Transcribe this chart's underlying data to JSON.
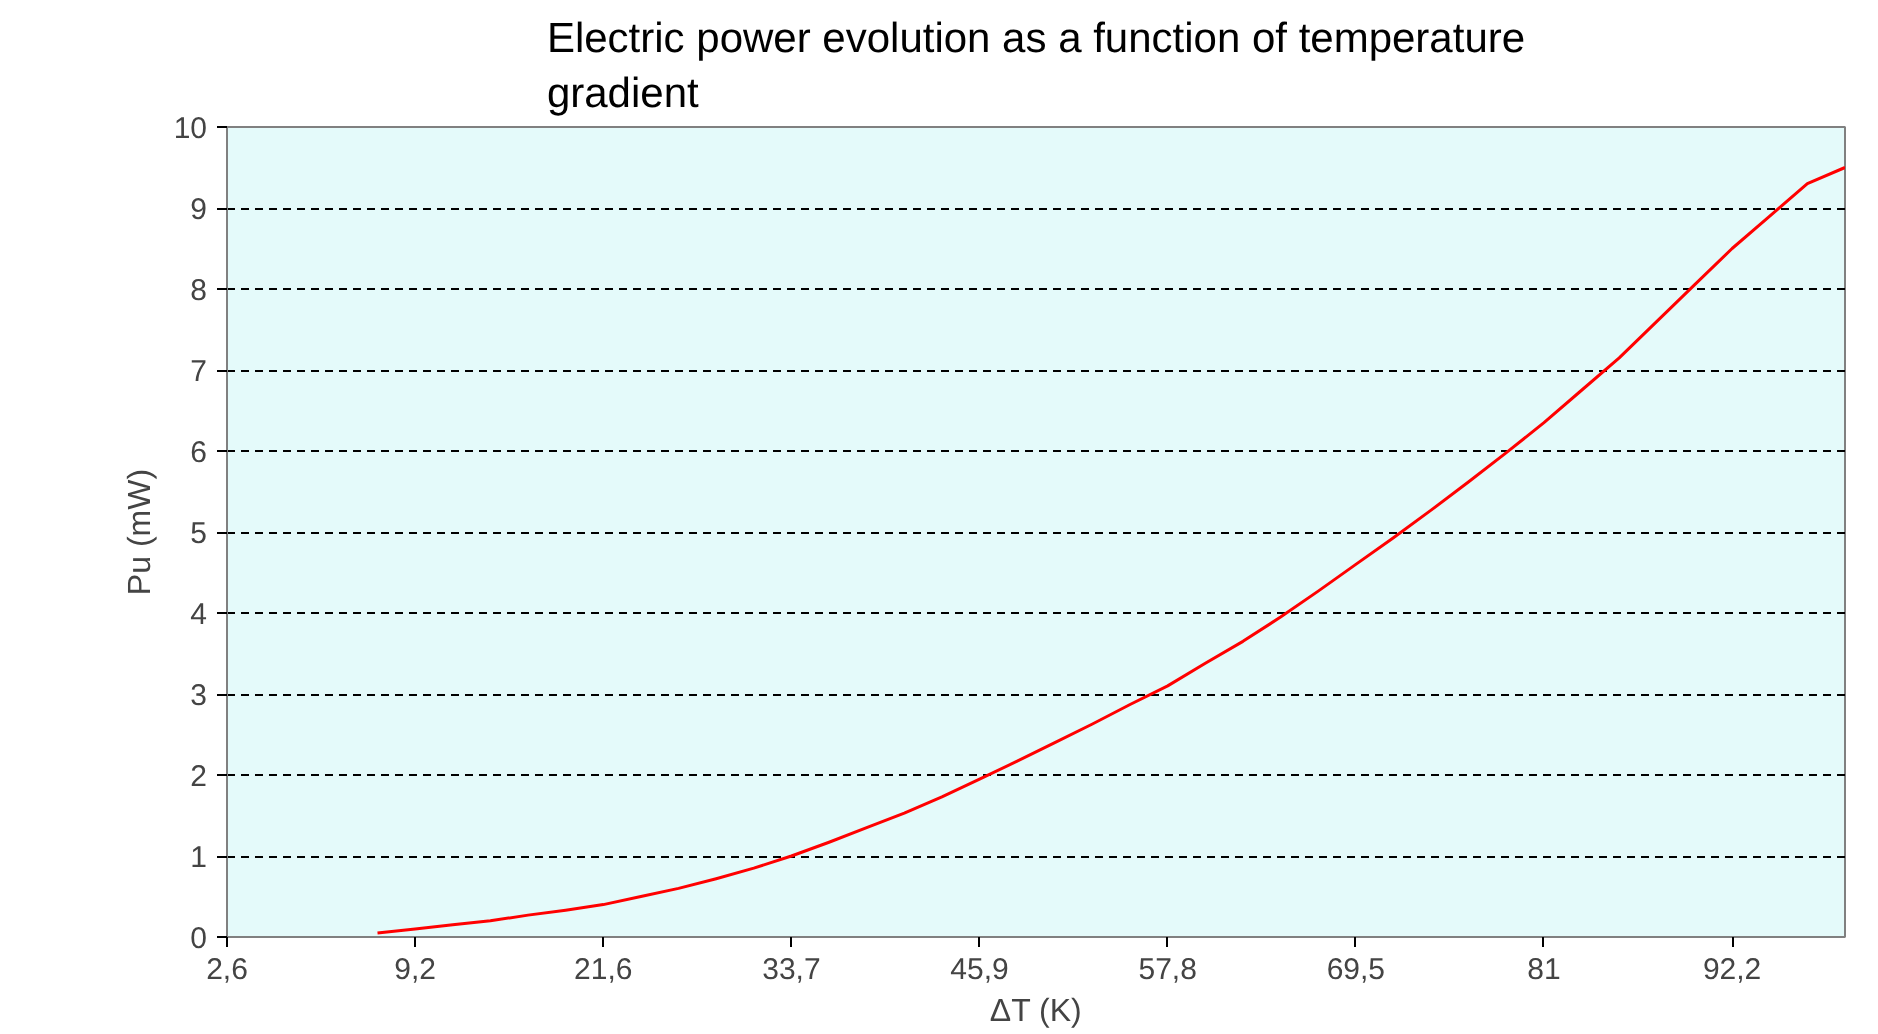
{
  "chart_data": {
    "type": "line",
    "title": "Electric power evolution as a function of temperature\ngradient",
    "xlabel": "ΔT (K)",
    "ylabel": "Pu (mW)",
    "categories": [
      "2,6",
      null,
      null,
      null,
      null,
      "9,2",
      null,
      null,
      null,
      null,
      "21,6",
      null,
      null,
      null,
      null,
      "33,7",
      null,
      null,
      null,
      null,
      "45,9",
      null,
      null,
      null,
      null,
      "57,8",
      null,
      null,
      null,
      null,
      "69,5",
      null,
      null,
      null,
      null,
      "81",
      null,
      null,
      null,
      null,
      "92,2",
      null,
      null,
      null
    ],
    "series": [
      {
        "color": "#ff0000",
        "values": [
          null,
          null,
          null,
          null,
          0.05,
          0.1,
          0.15,
          0.2,
          0.27,
          0.33,
          0.4,
          0.5,
          0.6,
          0.72,
          0.85,
          1.0,
          1.17,
          1.35,
          1.53,
          1.73,
          1.95,
          2.17,
          2.4,
          2.63,
          2.87,
          3.1,
          3.38,
          3.65,
          3.95,
          4.27,
          4.6,
          4.93,
          5.27,
          5.62,
          5.98,
          6.35,
          6.75,
          7.15,
          7.6,
          8.05,
          8.5,
          8.9,
          9.3,
          9.5
        ]
      }
    ],
    "ylim": [
      0,
      10
    ],
    "yticks": [
      0,
      1,
      2,
      3,
      4,
      5,
      6,
      7,
      8,
      9,
      10
    ],
    "grid": "y",
    "marker": "none",
    "line_style": "solid"
  }
}
